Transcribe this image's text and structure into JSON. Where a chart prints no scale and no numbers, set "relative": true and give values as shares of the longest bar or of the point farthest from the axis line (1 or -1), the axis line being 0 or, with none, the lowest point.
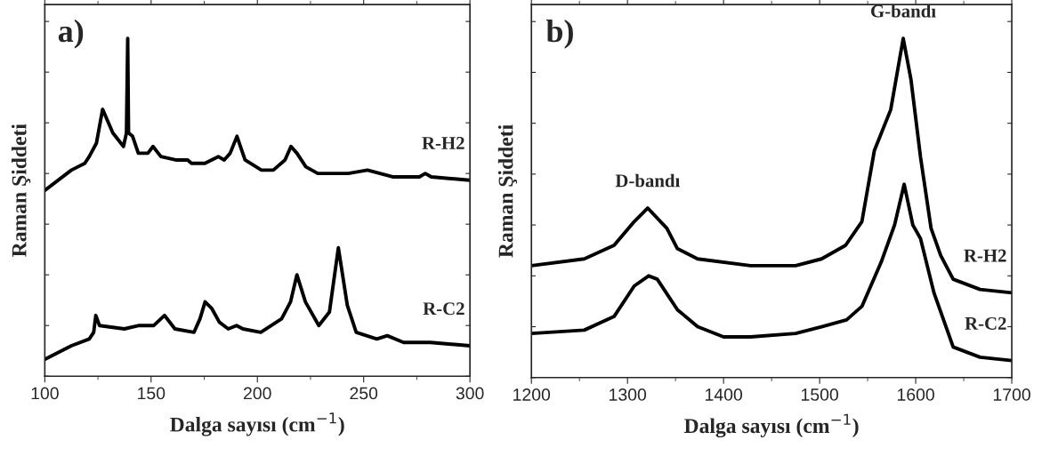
{
  "chart_data": [
    {
      "type": "line",
      "relative": true,
      "xlabel": "Dalga sayısı (cm$^{−1}$)",
      "ylabel": "Raman Şiddeti",
      "xlim": [
        100,
        300
      ],
      "xticks": [
        100,
        150,
        200,
        250,
        300
      ],
      "grid": false,
      "legend": false,
      "marker": "none",
      "line_style": "solid",
      "annotations": [
        "a)"
      ],
      "series": [
        {
          "name": "R-H2",
          "color": "#000000",
          "x": [
            100,
            112.5,
            118.8,
            120.9,
            124.3,
            127.2,
            132,
            137,
            138.4,
            139,
            139.4,
            141.3,
            144,
            148.5,
            150.9,
            154.6,
            161.6,
            167.2,
            169,
            175.3,
            181.6,
            184.4,
            187.2,
            190.4,
            194.2,
            201.9,
            207.5,
            213,
            215.8,
            218.6,
            222.8,
            228.4,
            242.7,
            251.8,
            263.6,
            276.2,
            279,
            281.8,
            300
          ],
          "values": [
            0.55,
            0.61,
            0.63,
            0.65,
            0.69,
            0.79,
            0.72,
            0.68,
            0.72,
            1,
            0.72,
            0.71,
            0.66,
            0.66,
            0.68,
            0.65,
            0.64,
            0.64,
            0.63,
            0.63,
            0.65,
            0.64,
            0.66,
            0.71,
            0.64,
            0.61,
            0.61,
            0.64,
            0.68,
            0.66,
            0.62,
            0.6,
            0.6,
            0.61,
            0.59,
            0.59,
            0.6,
            0.59,
            0.58
          ]
        },
        {
          "name": "R-C2",
          "color": "#000000",
          "x": [
            100,
            112.5,
            120.9,
            123,
            124,
            125.7,
            137.4,
            144.4,
            151.3,
            156.3,
            161.2,
            170.2,
            173,
            175.4,
            178.6,
            182.1,
            186.3,
            190.2,
            193.2,
            201.6,
            211.4,
            215.6,
            218.6,
            222.6,
            228.9,
            233.9,
            238.1,
            242.3,
            246.5,
            256.2,
            261.1,
            268.8,
            281.4,
            300
          ],
          "values": [
            0.05,
            0.09,
            0.11,
            0.13,
            0.18,
            0.15,
            0.14,
            0.15,
            0.15,
            0.18,
            0.14,
            0.13,
            0.17,
            0.22,
            0.2,
            0.16,
            0.14,
            0.15,
            0.14,
            0.13,
            0.17,
            0.22,
            0.3,
            0.22,
            0.15,
            0.19,
            0.38,
            0.21,
            0.13,
            0.11,
            0.12,
            0.1,
            0.1,
            0.09
          ]
        }
      ]
    },
    {
      "type": "line",
      "relative": true,
      "xlabel": "Dalga sayısı (cm$^{−1}$)",
      "ylabel": "Raman Şiddeti",
      "xlim": [
        1200,
        1700
      ],
      "xticks": [
        1200,
        1300,
        1400,
        1500,
        1600,
        1700
      ],
      "grid": false,
      "legend": false,
      "marker": "none",
      "line_style": "solid",
      "annotations": [
        "b)",
        {
          "text": "D-bandı",
          "x": 1321,
          "y": 0.5
        },
        {
          "text": "G-bandı",
          "x": 1587,
          "y": 1
        }
      ],
      "series": [
        {
          "name": "R-H2",
          "color": "#000000",
          "x": [
            1200,
            1255,
            1286,
            1307,
            1321,
            1341,
            1352,
            1373,
            1428,
            1475,
            1502,
            1527,
            1544,
            1557,
            1574,
            1587,
            1595,
            1605,
            1616,
            1626,
            1639,
            1667,
            1700
          ],
          "values": [
            0.33,
            0.35,
            0.39,
            0.46,
            0.5,
            0.44,
            0.38,
            0.35,
            0.33,
            0.33,
            0.35,
            0.39,
            0.46,
            0.67,
            0.79,
            1,
            0.88,
            0.65,
            0.44,
            0.36,
            0.29,
            0.26,
            0.25
          ]
        },
        {
          "name": "R-C2",
          "color": "#000000",
          "x": [
            1200,
            1255,
            1286,
            1307,
            1322,
            1331,
            1352,
            1373,
            1400,
            1428,
            1475,
            1502,
            1528,
            1544,
            1564,
            1578,
            1588,
            1597,
            1605,
            1619,
            1639,
            1667,
            1700
          ],
          "values": [
            0.13,
            0.14,
            0.18,
            0.27,
            0.3,
            0.29,
            0.2,
            0.15,
            0.12,
            0.12,
            0.13,
            0.15,
            0.17,
            0.21,
            0.34,
            0.45,
            0.57,
            0.45,
            0.41,
            0.25,
            0.09,
            0.06,
            0.05
          ]
        }
      ]
    }
  ]
}
